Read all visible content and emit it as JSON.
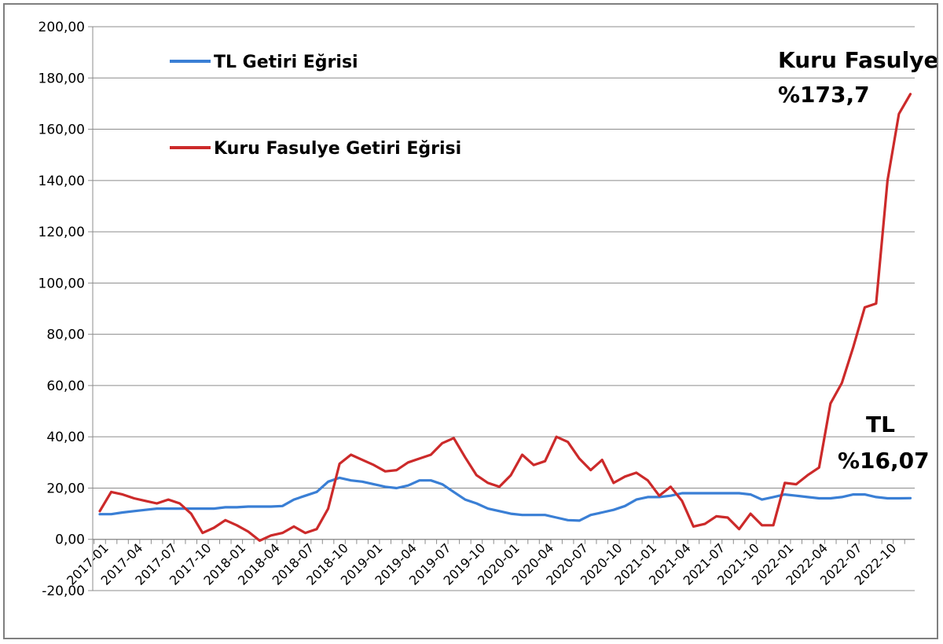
{
  "chart_data": {
    "type": "line",
    "title": "",
    "xlabel": "",
    "ylabel": "",
    "ylim": [
      -20,
      200
    ],
    "yticks": [
      "-20,00",
      "0,00",
      "20,00",
      "40,00",
      "60,00",
      "80,00",
      "100,00",
      "120,00",
      "140,00",
      "160,00",
      "180,00",
      "200,00"
    ],
    "ytick_values": [
      -20,
      0,
      20,
      40,
      60,
      80,
      100,
      120,
      140,
      160,
      180,
      200
    ],
    "grid": true,
    "legend_placement": "top-left",
    "x": [
      "2017-01",
      "2017-02",
      "2017-03",
      "2017-04",
      "2017-05",
      "2017-06",
      "2017-07",
      "2017-08",
      "2017-09",
      "2017-10",
      "2017-11",
      "2017-12",
      "2018-01",
      "2018-02",
      "2018-03",
      "2018-04",
      "2018-05",
      "2018-06",
      "2018-07",
      "2018-08",
      "2018-09",
      "2018-10",
      "2018-11",
      "2018-12",
      "2019-01",
      "2019-02",
      "2019-03",
      "2019-04",
      "2019-05",
      "2019-06",
      "2019-07",
      "2019-08",
      "2019-09",
      "2019-10",
      "2019-11",
      "2019-12",
      "2020-01",
      "2020-02",
      "2020-03",
      "2020-04",
      "2020-05",
      "2020-06",
      "2020-07",
      "2020-08",
      "2020-09",
      "2020-10",
      "2020-11",
      "2020-12",
      "2021-01",
      "2021-02",
      "2021-03",
      "2021-04",
      "2021-05",
      "2021-06",
      "2021-07",
      "2021-08",
      "2021-09",
      "2021-10",
      "2021-11",
      "2021-12",
      "2022-01",
      "2022-02",
      "2022-03",
      "2022-04",
      "2022-05",
      "2022-06",
      "2022-07",
      "2022-08",
      "2022-09",
      "2022-10",
      "2022-11",
      "2022-12"
    ],
    "xtick_labels": [
      "2017-01",
      "2017-04",
      "2017-07",
      "2017-10",
      "2018-01",
      "2018-04",
      "2018-07",
      "2018-10",
      "2019-01",
      "2019-04",
      "2019-07",
      "2019-10",
      "2020-01",
      "2020-04",
      "2020-07",
      "2020-10",
      "2021-01",
      "2021-04",
      "2021-07",
      "2021-10",
      "2022-01",
      "2022-04",
      "2022-07",
      "2022-10"
    ],
    "series": [
      {
        "name": "TL Getiri Eğrisi",
        "color": "#3a7fd5",
        "values": [
          9.8,
          9.8,
          10.5,
          11,
          11.5,
          12,
          12,
          12,
          12,
          12,
          12,
          12.5,
          12.5,
          12.8,
          12.8,
          12.8,
          13,
          15.5,
          17,
          18.5,
          22.5,
          24,
          23,
          22.5,
          21.5,
          20.5,
          20,
          21,
          23,
          23,
          21.5,
          18.5,
          15.5,
          14,
          12,
          11,
          10,
          9.5,
          9.5,
          9.5,
          8.5,
          7.5,
          7.3,
          9.5,
          10.5,
          11.5,
          13,
          15.5,
          16.5,
          16.5,
          17,
          18,
          18,
          18,
          18,
          18,
          18,
          17.5,
          15.5,
          16.5,
          17.5,
          17,
          16.5,
          16,
          16,
          16.5,
          17.5,
          17.5,
          16.5,
          16,
          16,
          16.07
        ]
      },
      {
        "name": "Kuru Fasulye Getiri Eğrisi",
        "color": "#cc2a2a",
        "values": [
          11,
          18.5,
          17.5,
          16,
          15,
          14,
          15.5,
          14,
          10,
          2.5,
          4.5,
          7.5,
          5.5,
          3,
          -0.5,
          1.5,
          2.5,
          5,
          2.5,
          4,
          12,
          29.5,
          33,
          31,
          29,
          26.5,
          27,
          30,
          31.5,
          33,
          37.5,
          39.5,
          32,
          25,
          22,
          20.5,
          25,
          33,
          29,
          30.5,
          40,
          38,
          31.5,
          27,
          31,
          22,
          24.5,
          26,
          23,
          17,
          20.5,
          15,
          5,
          6,
          9,
          8.5,
          4,
          10,
          5.5,
          5.5,
          22,
          21.5,
          25,
          28,
          53,
          61,
          75,
          90.5,
          92,
          140,
          166,
          173.7
        ]
      }
    ],
    "annotations": [
      {
        "line1": "Kuru Fasulye",
        "line2": "%173,7"
      },
      {
        "line1": "TL",
        "line2": "%16,07"
      }
    ]
  }
}
